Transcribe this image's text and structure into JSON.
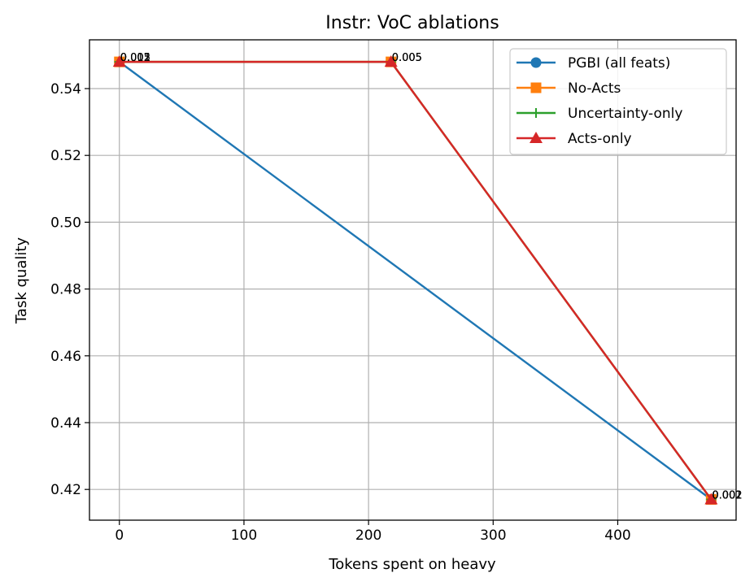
{
  "chart_data": {
    "type": "line",
    "title": "Instr: VoC ablations",
    "xlabel": "Tokens spent on heavy",
    "ylabel": "Task quality",
    "xlim": [
      -24,
      495
    ],
    "ylim": [
      0.4108,
      0.5546
    ],
    "xticks": [
      0,
      100,
      200,
      300,
      400
    ],
    "yticks": [
      0.42,
      0.44,
      0.46,
      0.48,
      0.5,
      0.52,
      0.54
    ],
    "xtick_labels": [
      "0",
      "100",
      "200",
      "300",
      "400"
    ],
    "ytick_labels": [
      "0.42",
      "0.44",
      "0.46",
      "0.48",
      "0.50",
      "0.52",
      "0.54"
    ],
    "grid": true,
    "legend_position": "upper right",
    "series": [
      {
        "name": "PGBI (all feats)",
        "color": "#1f77b4",
        "marker": "circle",
        "points": [
          {
            "x": 0,
            "y": 0.548,
            "label": "0.001"
          },
          {
            "x": 475,
            "y": 0.417,
            "label": "0.001"
          }
        ]
      },
      {
        "name": "No-Acts",
        "color": "#ff7f0e",
        "marker": "square",
        "points": [
          {
            "x": 0,
            "y": 0.548,
            "label": "0.015"
          },
          {
            "x": 218,
            "y": 0.548,
            "label": "0.005"
          },
          {
            "x": 475,
            "y": 0.417,
            "label": "0.002"
          }
        ]
      },
      {
        "name": "Uncertainty-only",
        "color": "#2ca02c",
        "marker": "plus",
        "points": [
          {
            "x": 0,
            "y": 0.548,
            "label": "0.002"
          },
          {
            "x": 218,
            "y": 0.548,
            "label": "0.005"
          },
          {
            "x": 475,
            "y": 0.417,
            "label": "0.002"
          }
        ]
      },
      {
        "name": "Acts-only",
        "color": "#d62728",
        "marker": "triangle",
        "points": [
          {
            "x": 0,
            "y": 0.548,
            "label": "0.002"
          },
          {
            "x": 218,
            "y": 0.548,
            "label": "0.005"
          },
          {
            "x": 475,
            "y": 0.417,
            "label": "0.002"
          }
        ]
      }
    ]
  }
}
